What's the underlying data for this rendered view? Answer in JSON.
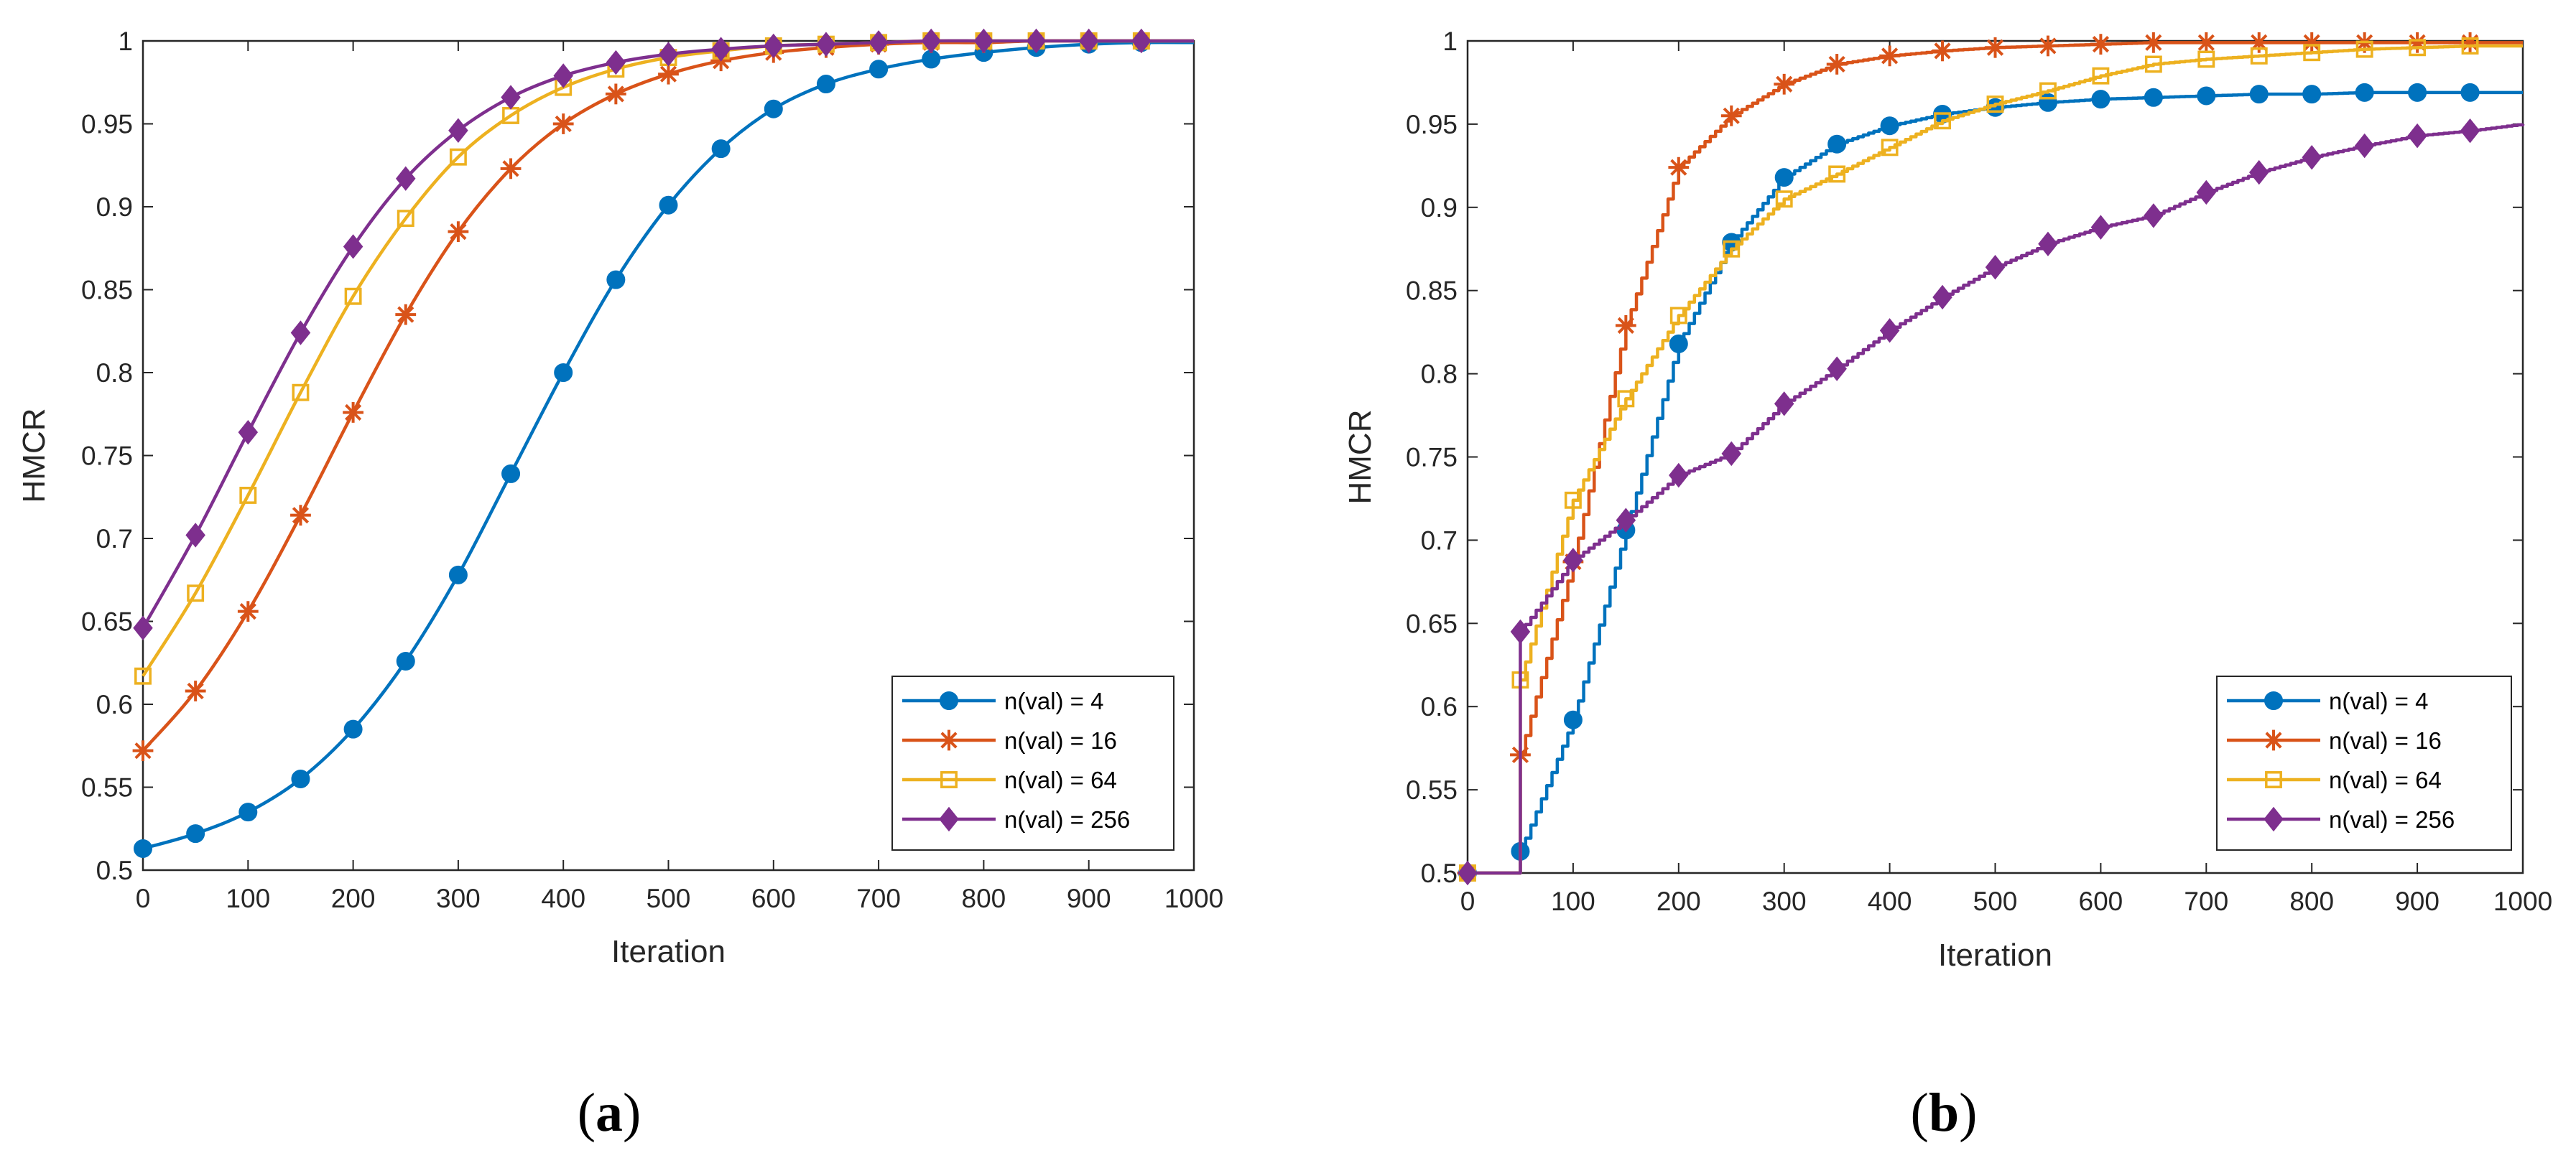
{
  "chart_data": [
    {
      "id": "a",
      "type": "line",
      "caption": "a",
      "xlabel": "Iteration",
      "ylabel": "HMCR",
      "xlim": [
        0,
        1000
      ],
      "ylim": [
        0.5,
        1
      ],
      "xticks": [
        0,
        100,
        200,
        300,
        400,
        500,
        600,
        700,
        800,
        900,
        1000
      ],
      "xtick_labels": [
        "0",
        "100",
        "200",
        "300",
        "400",
        "500",
        "600",
        "700",
        "800",
        "900",
        "1000"
      ],
      "yticks": [
        0.5,
        0.55,
        0.6,
        0.65,
        0.7,
        0.75,
        0.8,
        0.85,
        0.9,
        0.95,
        1
      ],
      "ytick_labels": [
        "0.5",
        "0.55",
        "0.6",
        "0.65",
        "0.7",
        "0.75",
        "0.8",
        "0.85",
        "0.9",
        "0.95",
        "1"
      ],
      "legend_position": "bottom-right",
      "series": [
        {
          "name": "n(val) = 4",
          "color": "#0072BD",
          "marker": "circle",
          "x": [
            0,
            50,
            100,
            150,
            200,
            250,
            300,
            350,
            400,
            450,
            500,
            550,
            600,
            650,
            700,
            750,
            800,
            850,
            900,
            950,
            1000
          ],
          "y": [
            0.513,
            0.522,
            0.535,
            0.555,
            0.585,
            0.626,
            0.678,
            0.739,
            0.8,
            0.856,
            0.901,
            0.935,
            0.959,
            0.974,
            0.983,
            0.989,
            0.993,
            0.996,
            0.998,
            0.999,
            0.999
          ]
        },
        {
          "name": "n(val) = 16",
          "color": "#D95319",
          "marker": "asterisk",
          "x": [
            0,
            50,
            100,
            150,
            200,
            250,
            300,
            350,
            400,
            450,
            500,
            550,
            600,
            650,
            700,
            750,
            800,
            850,
            900,
            950,
            1000
          ],
          "y": [
            0.572,
            0.608,
            0.656,
            0.714,
            0.776,
            0.835,
            0.885,
            0.923,
            0.95,
            0.968,
            0.98,
            0.988,
            0.993,
            0.996,
            0.998,
            0.999,
            0.999,
            1.0,
            1.0,
            1.0,
            1.0
          ]
        },
        {
          "name": "n(val) = 64",
          "color": "#EDB120",
          "marker": "square",
          "x": [
            0,
            50,
            100,
            150,
            200,
            250,
            300,
            350,
            400,
            450,
            500,
            550,
            600,
            650,
            700,
            750,
            800,
            850,
            900,
            950,
            1000
          ],
          "y": [
            0.617,
            0.667,
            0.726,
            0.788,
            0.846,
            0.893,
            0.93,
            0.955,
            0.972,
            0.983,
            0.99,
            0.994,
            0.997,
            0.998,
            0.999,
            1.0,
            1.0,
            1.0,
            1.0,
            1.0,
            1.0
          ]
        },
        {
          "name": "n(val) = 256",
          "color": "#7E2F8E",
          "marker": "diamond",
          "x": [
            0,
            50,
            100,
            150,
            200,
            250,
            300,
            350,
            400,
            450,
            500,
            550,
            600,
            650,
            700,
            750,
            800,
            850,
            900,
            950,
            1000
          ],
          "y": [
            0.646,
            0.702,
            0.764,
            0.824,
            0.876,
            0.917,
            0.946,
            0.966,
            0.979,
            0.987,
            0.992,
            0.995,
            0.997,
            0.998,
            0.999,
            1.0,
            1.0,
            1.0,
            1.0,
            1.0,
            1.0
          ]
        }
      ]
    },
    {
      "id": "b",
      "type": "line",
      "caption": "b",
      "xlabel": "Iteration",
      "ylabel": "HMCR",
      "xlim": [
        0,
        1000
      ],
      "ylim": [
        0.5,
        1
      ],
      "xticks": [
        0,
        100,
        200,
        300,
        400,
        500,
        600,
        700,
        800,
        900,
        1000
      ],
      "xtick_labels": [
        "0",
        "100",
        "200",
        "300",
        "400",
        "500",
        "600",
        "700",
        "800",
        "900",
        "1000"
      ],
      "yticks": [
        0.5,
        0.55,
        0.6,
        0.65,
        0.7,
        0.75,
        0.8,
        0.85,
        0.9,
        0.95,
        1
      ],
      "ytick_labels": [
        "0.5",
        "0.55",
        "0.6",
        "0.65",
        "0.7",
        "0.75",
        "0.8",
        "0.85",
        "0.9",
        "0.95",
        "1"
      ],
      "legend_position": "bottom-right",
      "series": [
        {
          "name": "n(val) = 4",
          "color": "#0072BD",
          "marker": "circle",
          "x": [
            0,
            50,
            100,
            150,
            200,
            250,
            300,
            350,
            400,
            450,
            500,
            550,
            600,
            650,
            700,
            750,
            800,
            850,
            900,
            950,
            1000
          ],
          "y": [
            0.5,
            0.513,
            0.592,
            0.706,
            0.818,
            0.879,
            0.918,
            0.938,
            0.949,
            0.956,
            0.96,
            0.963,
            0.965,
            0.966,
            0.967,
            0.968,
            0.968,
            0.969,
            0.969,
            0.969,
            0.969
          ]
        },
        {
          "name": "n(val) = 16",
          "color": "#D95319",
          "marker": "asterisk",
          "x": [
            0,
            50,
            100,
            150,
            200,
            250,
            300,
            350,
            400,
            450,
            500,
            550,
            600,
            650,
            700,
            750,
            800,
            850,
            900,
            950,
            1000
          ],
          "y": [
            0.5,
            0.571,
            0.687,
            0.829,
            0.924,
            0.955,
            0.974,
            0.986,
            0.991,
            0.994,
            0.996,
            0.997,
            0.998,
            0.999,
            0.999,
            0.999,
            0.999,
            0.999,
            0.999,
            0.999,
            0.999
          ]
        },
        {
          "name": "n(val) = 64",
          "color": "#EDB120",
          "marker": "square",
          "x": [
            0,
            50,
            100,
            150,
            200,
            250,
            300,
            350,
            400,
            450,
            500,
            550,
            600,
            650,
            700,
            750,
            800,
            850,
            900,
            950,
            1000
          ],
          "y": [
            0.5,
            0.616,
            0.724,
            0.785,
            0.835,
            0.875,
            0.905,
            0.92,
            0.936,
            0.952,
            0.962,
            0.97,
            0.979,
            0.986,
            0.989,
            0.991,
            0.993,
            0.995,
            0.996,
            0.997,
            0.997
          ]
        },
        {
          "name": "n(val) = 256",
          "color": "#7E2F8E",
          "marker": "diamond",
          "x": [
            0,
            50,
            100,
            150,
            200,
            250,
            300,
            350,
            400,
            450,
            500,
            550,
            600,
            650,
            700,
            750,
            800,
            850,
            900,
            950,
            1000
          ],
          "y": [
            0.5,
            0.645,
            0.688,
            0.712,
            0.739,
            0.752,
            0.782,
            0.803,
            0.826,
            0.846,
            0.864,
            0.878,
            0.888,
            0.895,
            0.909,
            0.921,
            0.93,
            0.937,
            0.943,
            0.946,
            0.95
          ]
        }
      ]
    }
  ]
}
